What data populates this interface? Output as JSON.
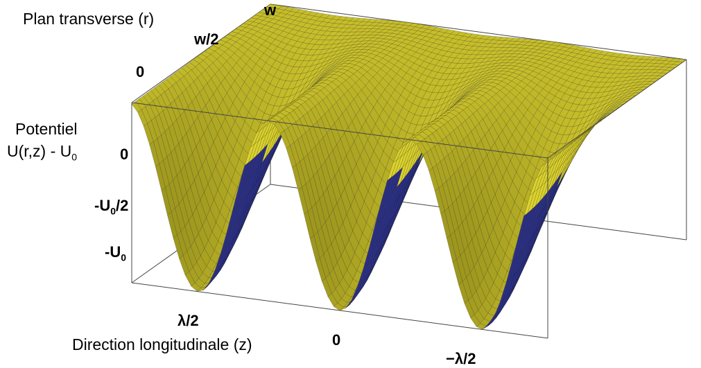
{
  "labels": {
    "r_axis": "Plan transverse (r)",
    "z_axis": "Direction longitudinale (z)",
    "u_axis_line1": "Potentiel",
    "u_axis_line2_pre": "U(r,z) - U",
    "u_axis_line2_sub": "0"
  },
  "ticks": {
    "r": [
      "0",
      "w/2",
      "w"
    ],
    "z": [
      "λ/2",
      "0",
      "−λ/2"
    ],
    "u0": "0",
    "u_half_pre": "-U",
    "u_half_sub": "0",
    "u_half_post": "/2",
    "u_full_pre": "-U",
    "u_full_sub": "0"
  },
  "colors": {
    "surface_top": "#c8c02a",
    "surface_side": "#2a2f86",
    "mesh": "#1a1a10",
    "box": "#444444"
  }
}
